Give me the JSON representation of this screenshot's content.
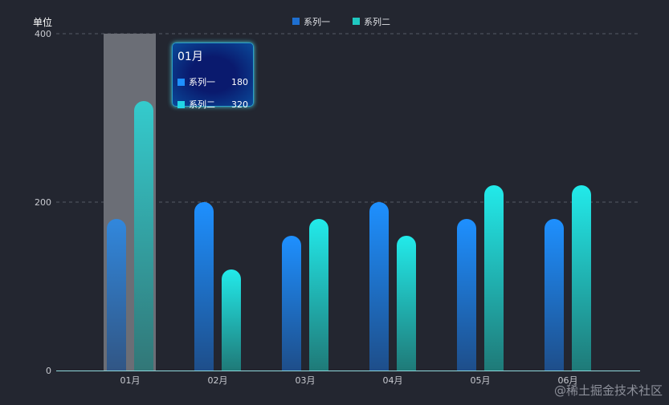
{
  "chart_data": {
    "type": "bar",
    "ylabel": "单位",
    "categories": [
      "01月",
      "02月",
      "03月",
      "04月",
      "05月",
      "06月"
    ],
    "series": [
      {
        "name": "系列一",
        "values": [
          180,
          200,
          160,
          200,
          180,
          180
        ],
        "color": "#1e90ff"
      },
      {
        "name": "系列二",
        "values": [
          320,
          120,
          180,
          160,
          220,
          220
        ],
        "color": "#22e6e6"
      }
    ],
    "ylim": [
      0,
      400
    ],
    "yticks": [
      0,
      200,
      400
    ],
    "grid": true,
    "legend": "top-center",
    "highlighted_category": "01月"
  },
  "tooltip": {
    "title": "01月",
    "rows": [
      {
        "name": "系列一",
        "value": "180"
      },
      {
        "name": "系列二",
        "value": "320"
      }
    ]
  },
  "watermark": "@稀土掘金技术社区"
}
